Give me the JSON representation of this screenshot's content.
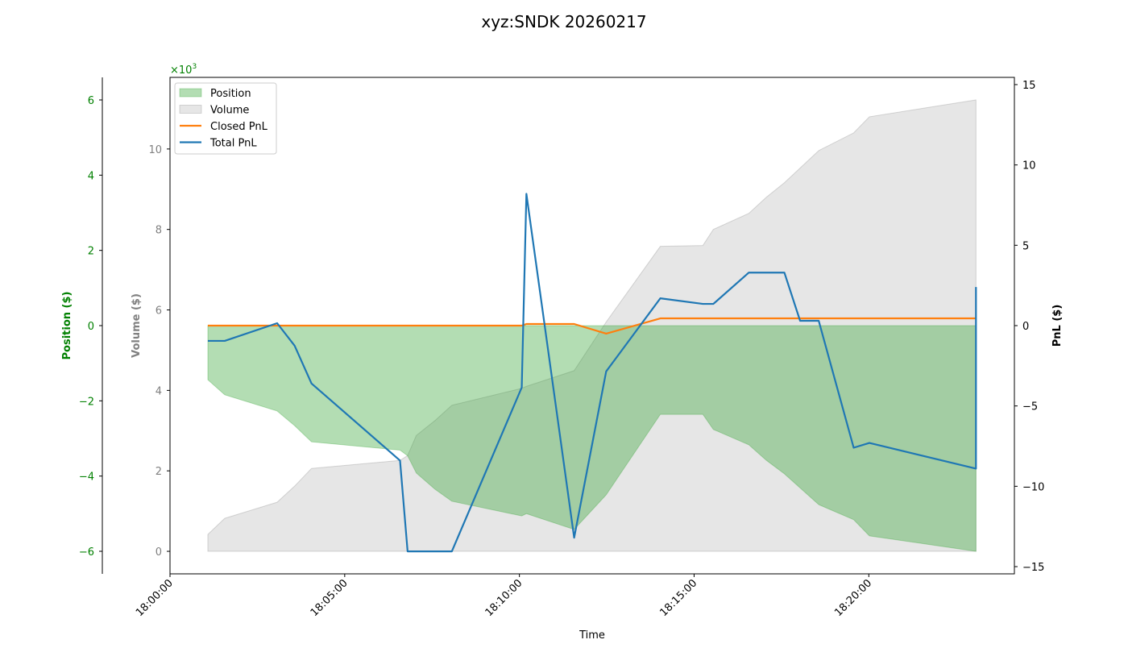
{
  "chart_data": {
    "type": "line",
    "title": "xyz:SNDK 20260217",
    "xlabel": "Time",
    "x_ticks": [
      "18:00:00",
      "18:05:00",
      "18:10:00",
      "18:15:00",
      "18:20:00"
    ],
    "x_range": [
      "18:00:00",
      "18:24:10"
    ],
    "legend_placement": "top-left",
    "grid": false,
    "axes": {
      "position": {
        "label": "Position ($)",
        "color": "#008000",
        "ticks": [
          -6000,
          -4000,
          -2000,
          0,
          2000,
          4000,
          6000
        ],
        "tick_labels": [
          "−6",
          "−4",
          "−2",
          "0",
          "2",
          "4",
          "6"
        ],
        "multiplier_label": "×10",
        "multiplier_exp": "3",
        "range": [
          -6600,
          6600
        ]
      },
      "volume": {
        "label": "Volume ($)",
        "color": "#808080",
        "ticks": [
          0,
          2000,
          4000,
          6000,
          8000,
          10000
        ],
        "tick_labels": [
          "0",
          "2",
          "4",
          "6",
          "8",
          "10"
        ],
        "range": [
          -560,
          11780
        ]
      },
      "pnl": {
        "label": "PnL ($)",
        "color": "#000000",
        "ticks": [
          -15,
          -10,
          -5,
          0,
          5,
          10,
          15
        ],
        "tick_labels": [
          "−15",
          "−10",
          "−5",
          "0",
          "5",
          "10",
          "15"
        ],
        "range": [
          -15.45,
          15.45
        ]
      }
    },
    "fill_times": [
      "18:01:05",
      "18:01:34",
      "18:03:04",
      "18:03:34",
      "18:04:03",
      "18:06:35",
      "18:06:48",
      "18:07:03",
      "18:07:35",
      "18:08:04",
      "18:10:04",
      "18:10:12",
      "18:11:34",
      "18:12:29",
      "18:14:02",
      "18:15:15",
      "18:15:33",
      "18:16:34",
      "18:17:04",
      "18:17:35",
      "18:18:34",
      "18:19:34",
      "18:20:01",
      "18:23:04"
    ],
    "series": [
      {
        "name": "Position",
        "kind": "area",
        "axis": "position",
        "color": "#2ca02c",
        "values": [
          -1440,
          -1840,
          -2270,
          -2660,
          -3090,
          -3310,
          -3460,
          -3920,
          -4350,
          -4670,
          -5060,
          -5000,
          -5420,
          -4500,
          -2360,
          -2360,
          -2760,
          -3170,
          -3580,
          -3940,
          -4760,
          -5160,
          -5590,
          -6000
        ]
      },
      {
        "name": "Volume",
        "kind": "area",
        "axis": "volume",
        "color": "#808080",
        "values": [
          420,
          820,
          1220,
          1620,
          2060,
          2260,
          2380,
          2880,
          3250,
          3630,
          4050,
          4100,
          4490,
          5700,
          7580,
          7600,
          8000,
          8400,
          8800,
          9160,
          9960,
          10400,
          10800,
          11220
        ]
      },
      {
        "name": "Closed PnL",
        "kind": "line",
        "axis": "pnl",
        "color": "#ff7f0e",
        "x": [
          "18:01:05",
          "18:10:04",
          "18:10:12",
          "18:11:34",
          "18:12:29",
          "18:14:02",
          "18:23:04"
        ],
        "values": [
          0,
          0,
          0.1,
          0.1,
          -0.5,
          0.45,
          0.45
        ]
      },
      {
        "name": "Total PnL",
        "kind": "line",
        "axis": "pnl",
        "color": "#1f77b4",
        "x": [
          "18:01:05",
          "18:01:34",
          "18:03:04",
          "18:03:34",
          "18:04:03",
          "18:06:35",
          "18:06:48",
          "18:08:04",
          "18:10:04",
          "18:10:12",
          "18:11:34",
          "18:12:29",
          "18:14:02",
          "18:15:15",
          "18:15:33",
          "18:16:34",
          "18:17:35",
          "18:18:02",
          "18:18:34",
          "18:19:34",
          "18:20:01",
          "18:23:04",
          "18:23:04"
        ],
        "values": [
          -0.95,
          -0.95,
          0.15,
          -1.25,
          -3.6,
          -8.4,
          -14.05,
          -14.05,
          -3.85,
          8.2,
          -13.2,
          -2.85,
          1.7,
          1.35,
          1.35,
          3.3,
          3.3,
          0.3,
          0.3,
          -7.6,
          -7.3,
          -8.9,
          2.4
        ]
      }
    ]
  }
}
